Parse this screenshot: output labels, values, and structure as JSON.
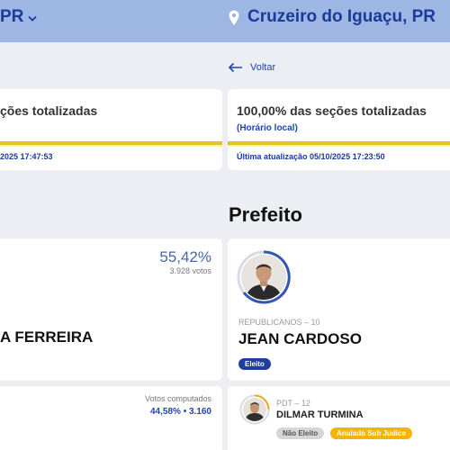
{
  "left": {
    "header_title": "PR",
    "status": {
      "title": "ções totalizadas",
      "update_text": "2025 17:47:53"
    },
    "candidate": {
      "percent": "55,42%",
      "votes": "3.928 votos",
      "name": "A FERREIRA"
    },
    "computed": {
      "label": "Votos computados",
      "value": "44,58% • 3.160"
    }
  },
  "right": {
    "header_title": "Cruzeiro do Iguaçu, PR",
    "back_label": "Voltar",
    "status": {
      "title": "100,00% das seções totalizadas",
      "subtitle": "(Horário local)",
      "update_text": "Última atualização 05/10/2025 17:23:50"
    },
    "section_title": "Prefeito",
    "winner": {
      "party": "REPUBLICANOS – 10",
      "name": "JEAN CARDOSO",
      "badge": "Eleito"
    },
    "runner_up": {
      "party": "PDT – 12",
      "name": "DILMAR TURMINA",
      "badge_status": "Não Eleito",
      "badge_judicial": "Anulado Sub Judice"
    }
  },
  "colors": {
    "header": "#9eb6e3",
    "brand_blue": "#1a3a9c",
    "gold": "#e0c426",
    "badge_orange": "#f4b400"
  },
  "icons": {
    "header_left": "chevron-down-icon",
    "header_right": "location-pin-icon",
    "back": "arrow-left-icon"
  }
}
